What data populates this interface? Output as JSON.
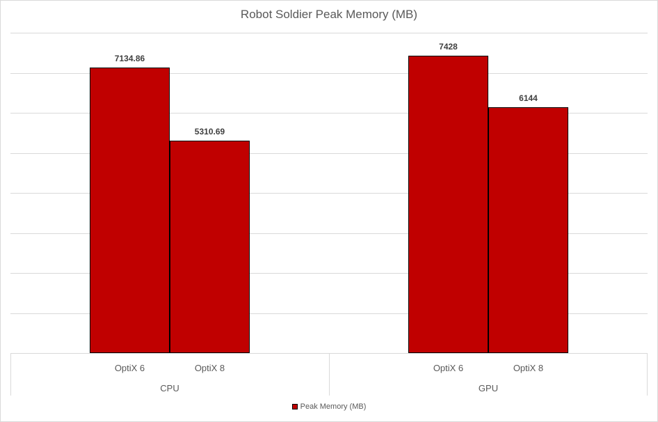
{
  "chart_data": {
    "type": "bar",
    "title": "Robot Soldier Peak Memory (MB)",
    "groups": [
      "CPU",
      "GPU"
    ],
    "subcategories": [
      "OptiX 6",
      "OptiX 8"
    ],
    "categories": [
      "CPU / OptiX 6",
      "CPU / OptiX 8",
      "GPU / OptiX 6",
      "GPU / OptiX 8"
    ],
    "series": [
      {
        "name": "Peak Memory (MB)",
        "values": [
          7134.86,
          5310.69,
          7428,
          6144
        ]
      }
    ],
    "data_labels": [
      "7134.86",
      "5310.69",
      "7428",
      "6144"
    ],
    "xlabel": "",
    "ylabel": "",
    "ylim": [
      0,
      8000
    ],
    "gridline_step": 1000,
    "grid": true,
    "y_tick_labels_visible": false,
    "legend_position": "bottom"
  },
  "legend": {
    "label": "Peak Memory (MB)"
  },
  "colors": {
    "bar_fill": "#c00000",
    "bar_border": "#000000",
    "gridline": "#d9d9d9",
    "chart_border": "#d9d9d9",
    "background": "#ffffff",
    "title_text": "#595959",
    "axis_text": "#595959",
    "data_label_text": "#404040"
  }
}
